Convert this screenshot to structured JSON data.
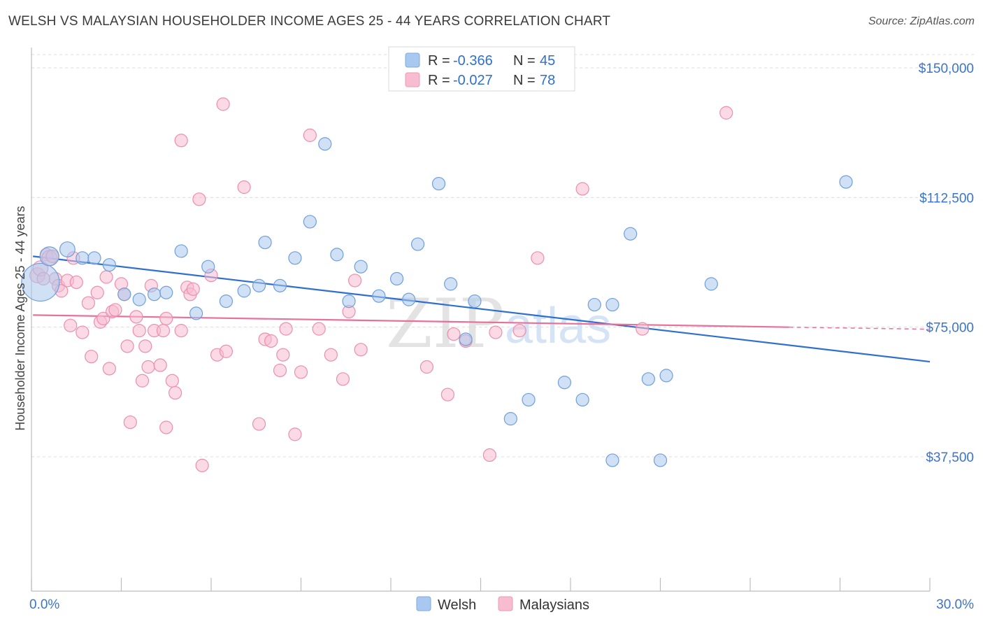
{
  "title": "WELSH VS MALAYSIAN HOUSEHOLDER INCOME AGES 25 - 44 YEARS CORRELATION CHART",
  "source": "Source: ZipAtlas.com",
  "watermark": {
    "part1": "ZIP",
    "part2": "atlas"
  },
  "legend": {
    "rows": [
      {
        "r_label": "R =",
        "r_value": "-0.366",
        "n_label": "N =",
        "n_value": "45",
        "color": "#a9c8ef",
        "stroke": "#7eaae0"
      },
      {
        "r_label": "R =",
        "r_value": "-0.027",
        "n_label": "N =",
        "n_value": "78",
        "color": "#f7bccf",
        "stroke": "#ef9ab5"
      }
    ]
  },
  "bottom_legend": {
    "welsh": "Welsh",
    "malaysians": "Malaysians"
  },
  "chart_data": {
    "type": "scatter",
    "ylabel": "Householder Income Ages 25 - 44 years",
    "xlim": [
      0,
      30
    ],
    "ylim": [
      0,
      155000
    ],
    "x_tick_labels": {
      "min": "0.0%",
      "max": "30.0%"
    },
    "y_ticks": [
      {
        "value": 37500,
        "label": "$37,500"
      },
      {
        "value": 75000,
        "label": "$75,000"
      },
      {
        "value": 112500,
        "label": "$112,500"
      },
      {
        "value": 150000,
        "label": "$150,000"
      }
    ],
    "grid": true,
    "colors": {
      "welsh_fill": "#a9c8ef",
      "welsh_stroke": "#6f9fdc",
      "welsh_line": "#2e6fd0",
      "malay_fill": "#f7bccf",
      "malay_stroke": "#ec8eac",
      "malay_line": "#e8709a"
    },
    "series": [
      {
        "name": "Welsh",
        "trend": {
          "x0": 0.05,
          "y0": 95500,
          "x1": 30,
          "y1": 65000
        },
        "points": [
          [
            0.3,
            88000,
            3
          ],
          [
            0.6,
            95500,
            1.5
          ],
          [
            1.2,
            97500,
            1.2
          ],
          [
            1.7,
            95000,
            1
          ],
          [
            2.1,
            95000,
            1
          ],
          [
            2.6,
            93000,
            1
          ],
          [
            3.1,
            84500,
            1
          ],
          [
            3.6,
            83000,
            1
          ],
          [
            4.1,
            84500,
            1
          ],
          [
            4.5,
            85000,
            1
          ],
          [
            5.0,
            97000,
            1
          ],
          [
            5.5,
            79000,
            1
          ],
          [
            5.9,
            92500,
            1
          ],
          [
            6.5,
            82500,
            1
          ],
          [
            7.1,
            85500,
            1
          ],
          [
            7.6,
            87000,
            1
          ],
          [
            7.8,
            99500,
            1
          ],
          [
            8.3,
            87000,
            1
          ],
          [
            8.8,
            95000,
            1
          ],
          [
            9.3,
            105500,
            1
          ],
          [
            9.8,
            128000,
            1
          ],
          [
            10.2,
            96000,
            1
          ],
          [
            10.6,
            82500,
            1
          ],
          [
            11.0,
            92500,
            1
          ],
          [
            11.6,
            84000,
            1
          ],
          [
            12.2,
            89000,
            1
          ],
          [
            12.6,
            83000,
            1
          ],
          [
            12.9,
            99000,
            1
          ],
          [
            13.6,
            116500,
            1
          ],
          [
            14.0,
            87500,
            1
          ],
          [
            14.5,
            71500,
            1
          ],
          [
            14.8,
            82500,
            1
          ],
          [
            16.0,
            48500,
            1
          ],
          [
            16.6,
            54000,
            1
          ],
          [
            17.8,
            59000,
            1
          ],
          [
            18.4,
            54000,
            1
          ],
          [
            18.8,
            81500,
            1
          ],
          [
            19.4,
            36500,
            1
          ],
          [
            19.4,
            81500,
            1
          ],
          [
            20.0,
            102000,
            1
          ],
          [
            20.6,
            60000,
            1
          ],
          [
            21.2,
            61000,
            1
          ],
          [
            21.0,
            36500,
            1
          ],
          [
            22.7,
            87500,
            1
          ],
          [
            27.2,
            117000,
            1
          ]
        ]
      },
      {
        "name": "Malaysians",
        "trend": {
          "x0": 0.05,
          "y0": 78500,
          "x1": 25.3,
          "y1": 75000,
          "dash_to_x": 30,
          "dash_to_y": 74400
        },
        "points": [
          [
            0.2,
            90000,
            1.2
          ],
          [
            0.3,
            92000,
            1.2
          ],
          [
            0.5,
            96000,
            1
          ],
          [
            0.6,
            95000,
            1.2
          ],
          [
            0.7,
            95500,
            1
          ],
          [
            0.8,
            89000,
            1
          ],
          [
            0.9,
            87000,
            1
          ],
          [
            1.0,
            85500,
            1
          ],
          [
            1.2,
            88500,
            1
          ],
          [
            1.3,
            75500,
            1
          ],
          [
            1.4,
            95000,
            1
          ],
          [
            1.5,
            88000,
            1
          ],
          [
            1.7,
            73500,
            1
          ],
          [
            1.9,
            82000,
            1
          ],
          [
            2.0,
            66500,
            1
          ],
          [
            2.2,
            85000,
            1
          ],
          [
            2.3,
            76500,
            1
          ],
          [
            2.4,
            77500,
            1
          ],
          [
            2.5,
            89500,
            1
          ],
          [
            2.7,
            79500,
            1
          ],
          [
            2.8,
            80000,
            1
          ],
          [
            2.6,
            63000,
            1
          ],
          [
            3.0,
            87500,
            1
          ],
          [
            3.1,
            84500,
            1
          ],
          [
            3.2,
            69500,
            1
          ],
          [
            3.3,
            47500,
            1
          ],
          [
            3.5,
            78000,
            1
          ],
          [
            3.6,
            74000,
            1
          ],
          [
            3.7,
            59500,
            1
          ],
          [
            3.8,
            69500,
            1
          ],
          [
            3.9,
            63500,
            1
          ],
          [
            4.0,
            87000,
            1
          ],
          [
            4.1,
            74000,
            1
          ],
          [
            4.3,
            64000,
            1
          ],
          [
            4.4,
            74000,
            1
          ],
          [
            4.5,
            77500,
            1
          ],
          [
            4.5,
            46000,
            1
          ],
          [
            4.7,
            59500,
            1
          ],
          [
            4.8,
            56000,
            1
          ],
          [
            5.0,
            74000,
            1
          ],
          [
            5.0,
            129000,
            1
          ],
          [
            5.2,
            86500,
            1
          ],
          [
            5.3,
            84500,
            1
          ],
          [
            5.4,
            86000,
            1
          ],
          [
            5.6,
            112000,
            1
          ],
          [
            5.7,
            35000,
            1
          ],
          [
            6.0,
            90000,
            1
          ],
          [
            6.2,
            67000,
            1
          ],
          [
            6.4,
            139500,
            1
          ],
          [
            6.5,
            68000,
            1
          ],
          [
            7.1,
            115500,
            1
          ],
          [
            7.6,
            47000,
            1
          ],
          [
            7.8,
            71500,
            1
          ],
          [
            8.0,
            71000,
            1
          ],
          [
            8.3,
            62500,
            1
          ],
          [
            8.4,
            67000,
            1
          ],
          [
            8.5,
            74500,
            1
          ],
          [
            8.8,
            44000,
            1
          ],
          [
            9.0,
            62000,
            1
          ],
          [
            9.3,
            130500,
            1
          ],
          [
            9.6,
            74500,
            1
          ],
          [
            10.0,
            67000,
            1
          ],
          [
            10.4,
            60000,
            1
          ],
          [
            10.6,
            79500,
            1
          ],
          [
            10.8,
            88500,
            1
          ],
          [
            11.0,
            68500,
            1
          ],
          [
            13.2,
            63500,
            1
          ],
          [
            13.9,
            55500,
            1
          ],
          [
            14.1,
            73000,
            1
          ],
          [
            14.5,
            71000,
            1
          ],
          [
            15.3,
            38000,
            1
          ],
          [
            15.5,
            73500,
            1
          ],
          [
            16.3,
            74000,
            1
          ],
          [
            16.9,
            95000,
            1
          ],
          [
            18.4,
            115000,
            1
          ],
          [
            20.4,
            74500,
            1
          ],
          [
            23.2,
            137000,
            1
          ],
          [
            0.4,
            89000,
            1
          ]
        ]
      }
    ]
  }
}
